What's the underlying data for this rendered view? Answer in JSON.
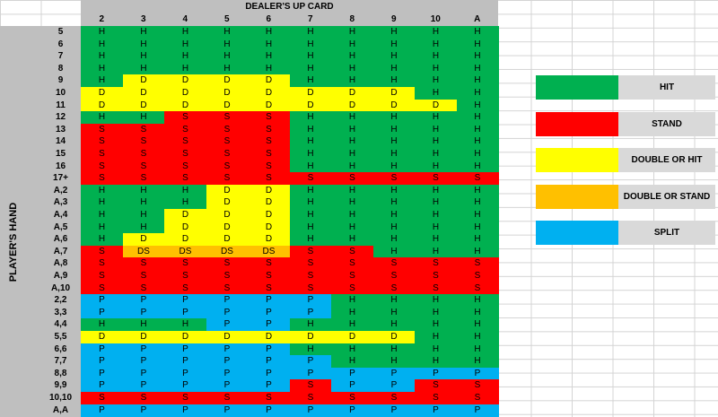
{
  "title": "DEALER'S UP CARD",
  "side_label": "PLAYER'S HAND",
  "dealer_cards": [
    "2",
    "3",
    "4",
    "5",
    "6",
    "7",
    "8",
    "9",
    "10",
    "A"
  ],
  "colors": {
    "H": "#00b050",
    "S": "#ff0000",
    "D": "#ffff00",
    "DS": "#ffc000",
    "P": "#00b0f0",
    "header": "#bfbfbf"
  },
  "rows": [
    {
      "hand": "5",
      "actions": [
        "H",
        "H",
        "H",
        "H",
        "H",
        "H",
        "H",
        "H",
        "H",
        "H"
      ]
    },
    {
      "hand": "6",
      "actions": [
        "H",
        "H",
        "H",
        "H",
        "H",
        "H",
        "H",
        "H",
        "H",
        "H"
      ]
    },
    {
      "hand": "7",
      "actions": [
        "H",
        "H",
        "H",
        "H",
        "H",
        "H",
        "H",
        "H",
        "H",
        "H"
      ]
    },
    {
      "hand": "8",
      "actions": [
        "H",
        "H",
        "H",
        "H",
        "H",
        "H",
        "H",
        "H",
        "H",
        "H"
      ]
    },
    {
      "hand": "9",
      "actions": [
        "H",
        "D",
        "D",
        "D",
        "D",
        "H",
        "H",
        "H",
        "H",
        "H"
      ]
    },
    {
      "hand": "10",
      "actions": [
        "D",
        "D",
        "D",
        "D",
        "D",
        "D",
        "D",
        "D",
        "H",
        "H"
      ]
    },
    {
      "hand": "11",
      "actions": [
        "D",
        "D",
        "D",
        "D",
        "D",
        "D",
        "D",
        "D",
        "D",
        "H"
      ]
    },
    {
      "hand": "12",
      "actions": [
        "H",
        "H",
        "S",
        "S",
        "S",
        "H",
        "H",
        "H",
        "H",
        "H"
      ]
    },
    {
      "hand": "13",
      "actions": [
        "S",
        "S",
        "S",
        "S",
        "S",
        "H",
        "H",
        "H",
        "H",
        "H"
      ]
    },
    {
      "hand": "14",
      "actions": [
        "S",
        "S",
        "S",
        "S",
        "S",
        "H",
        "H",
        "H",
        "H",
        "H"
      ]
    },
    {
      "hand": "15",
      "actions": [
        "S",
        "S",
        "S",
        "S",
        "S",
        "H",
        "H",
        "H",
        "H",
        "H"
      ]
    },
    {
      "hand": "16",
      "actions": [
        "S",
        "S",
        "S",
        "S",
        "S",
        "H",
        "H",
        "H",
        "H",
        "H"
      ]
    },
    {
      "hand": "17+",
      "actions": [
        "S",
        "S",
        "S",
        "S",
        "S",
        "S",
        "S",
        "S",
        "S",
        "S"
      ]
    },
    {
      "hand": "A,2",
      "actions": [
        "H",
        "H",
        "H",
        "D",
        "D",
        "H",
        "H",
        "H",
        "H",
        "H"
      ]
    },
    {
      "hand": "A,3",
      "actions": [
        "H",
        "H",
        "H",
        "D",
        "D",
        "H",
        "H",
        "H",
        "H",
        "H"
      ]
    },
    {
      "hand": "A,4",
      "actions": [
        "H",
        "H",
        "D",
        "D",
        "D",
        "H",
        "H",
        "H",
        "H",
        "H"
      ]
    },
    {
      "hand": "A,5",
      "actions": [
        "H",
        "H",
        "D",
        "D",
        "D",
        "H",
        "H",
        "H",
        "H",
        "H"
      ]
    },
    {
      "hand": "A,6",
      "actions": [
        "H",
        "D",
        "D",
        "D",
        "D",
        "H",
        "H",
        "H",
        "H",
        "H"
      ]
    },
    {
      "hand": "A,7",
      "actions": [
        "S",
        "DS",
        "DS",
        "DS",
        "DS",
        "S",
        "S",
        "H",
        "H",
        "H"
      ]
    },
    {
      "hand": "A,8",
      "actions": [
        "S",
        "S",
        "S",
        "S",
        "S",
        "S",
        "S",
        "S",
        "S",
        "S"
      ]
    },
    {
      "hand": "A,9",
      "actions": [
        "S",
        "S",
        "S",
        "S",
        "S",
        "S",
        "S",
        "S",
        "S",
        "S"
      ]
    },
    {
      "hand": "A,10",
      "actions": [
        "S",
        "S",
        "S",
        "S",
        "S",
        "S",
        "S",
        "S",
        "S",
        "S"
      ]
    },
    {
      "hand": "2,2",
      "actions": [
        "P",
        "P",
        "P",
        "P",
        "P",
        "P",
        "H",
        "H",
        "H",
        "H"
      ]
    },
    {
      "hand": "3,3",
      "actions": [
        "P",
        "P",
        "P",
        "P",
        "P",
        "P",
        "H",
        "H",
        "H",
        "H"
      ]
    },
    {
      "hand": "4,4",
      "actions": [
        "H",
        "H",
        "H",
        "P",
        "P",
        "H",
        "H",
        "H",
        "H",
        "H"
      ]
    },
    {
      "hand": "5,5",
      "actions": [
        "D",
        "D",
        "D",
        "D",
        "D",
        "D",
        "D",
        "D",
        "H",
        "H"
      ]
    },
    {
      "hand": "6,6",
      "actions": [
        "P",
        "P",
        "P",
        "P",
        "P",
        "H",
        "H",
        "H",
        "H",
        "H"
      ]
    },
    {
      "hand": "7,7",
      "actions": [
        "P",
        "P",
        "P",
        "P",
        "P",
        "P",
        "H",
        "H",
        "H",
        "H"
      ]
    },
    {
      "hand": "8,8",
      "actions": [
        "P",
        "P",
        "P",
        "P",
        "P",
        "P",
        "P",
        "P",
        "P",
        "P"
      ]
    },
    {
      "hand": "9,9",
      "actions": [
        "P",
        "P",
        "P",
        "P",
        "P",
        "S",
        "P",
        "P",
        "S",
        "S"
      ]
    },
    {
      "hand": "10,10",
      "actions": [
        "S",
        "S",
        "S",
        "S",
        "S",
        "S",
        "S",
        "S",
        "S",
        "S"
      ]
    },
    {
      "hand": "A,A",
      "actions": [
        "P",
        "P",
        "P",
        "P",
        "P",
        "P",
        "P",
        "P",
        "P",
        "P"
      ]
    }
  ],
  "legend": [
    {
      "key": "H",
      "label": "HIT"
    },
    {
      "key": "S",
      "label": "STAND"
    },
    {
      "key": "D",
      "label": "DOUBLE OR HIT"
    },
    {
      "key": "DS",
      "label": "DOUBLE OR STAND"
    },
    {
      "key": "P",
      "label": "SPLIT"
    }
  ]
}
